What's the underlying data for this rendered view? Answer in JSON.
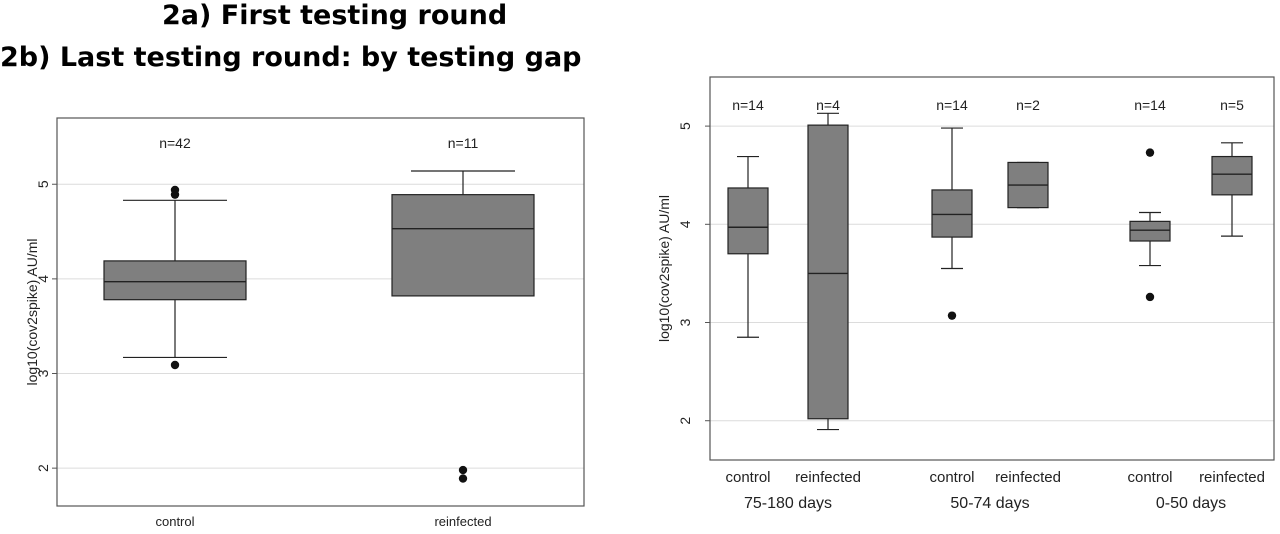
{
  "titles": {
    "a": "2a) First testing round",
    "b": "2b) Last testing round: by testing gap"
  },
  "colors": {
    "box_fill": "#7f7f7f",
    "grid": "#dcdcdc",
    "frame": "#555555"
  },
  "chart_data": [
    {
      "type": "box",
      "ylabel": "log10(cov2spike) AU/ml",
      "ylim": [
        1.6,
        5.7
      ],
      "yticks": [
        2,
        3,
        4,
        5
      ],
      "grid": true,
      "categories": [
        "control",
        "reinfected"
      ],
      "n_labels": [
        "n=42",
        "n=11"
      ],
      "boxes": [
        {
          "whisker_low": 3.17,
          "q1": 3.78,
          "median": 3.97,
          "q3": 4.19,
          "whisker_high": 4.83,
          "outliers": [
            3.09,
            4.89,
            4.94
          ]
        },
        {
          "whisker_low": 3.82,
          "q1": 3.82,
          "median": 4.53,
          "q3": 4.89,
          "whisker_high": 5.14,
          "outliers": [
            1.89,
            1.98
          ]
        }
      ]
    },
    {
      "type": "box",
      "ylabel": "log10(cov2spike) AU/ml",
      "ylim": [
        1.6,
        5.5
      ],
      "yticks": [
        2,
        3,
        4,
        5
      ],
      "grid": true,
      "categories": [
        "control",
        "reinfected",
        "control",
        "reinfected",
        "control",
        "reinfected"
      ],
      "groups": [
        "75-180 days",
        "50-74 days",
        "0-50 days"
      ],
      "n_labels": [
        "n=14",
        "n=4",
        "n=14",
        "n=2",
        "n=14",
        "n=5"
      ],
      "boxes": [
        {
          "whisker_low": 2.85,
          "q1": 3.7,
          "median": 3.97,
          "q3": 4.37,
          "whisker_high": 4.69,
          "outliers": []
        },
        {
          "whisker_low": 1.91,
          "q1": 2.02,
          "median": 3.5,
          "q3": 5.01,
          "whisker_high": 5.13,
          "outliers": []
        },
        {
          "whisker_low": 3.55,
          "q1": 3.87,
          "median": 4.1,
          "q3": 4.35,
          "whisker_high": 4.98,
          "outliers": [
            3.07
          ]
        },
        {
          "whisker_low": 4.17,
          "q1": 4.17,
          "median": 4.4,
          "q3": 4.63,
          "whisker_high": 4.63,
          "outliers": []
        },
        {
          "whisker_low": 3.58,
          "q1": 3.83,
          "median": 3.94,
          "q3": 4.03,
          "whisker_high": 4.12,
          "outliers": [
            3.26,
            4.73
          ]
        },
        {
          "whisker_low": 3.88,
          "q1": 4.3,
          "median": 4.51,
          "q3": 4.69,
          "whisker_high": 4.83,
          "outliers": []
        }
      ]
    }
  ]
}
